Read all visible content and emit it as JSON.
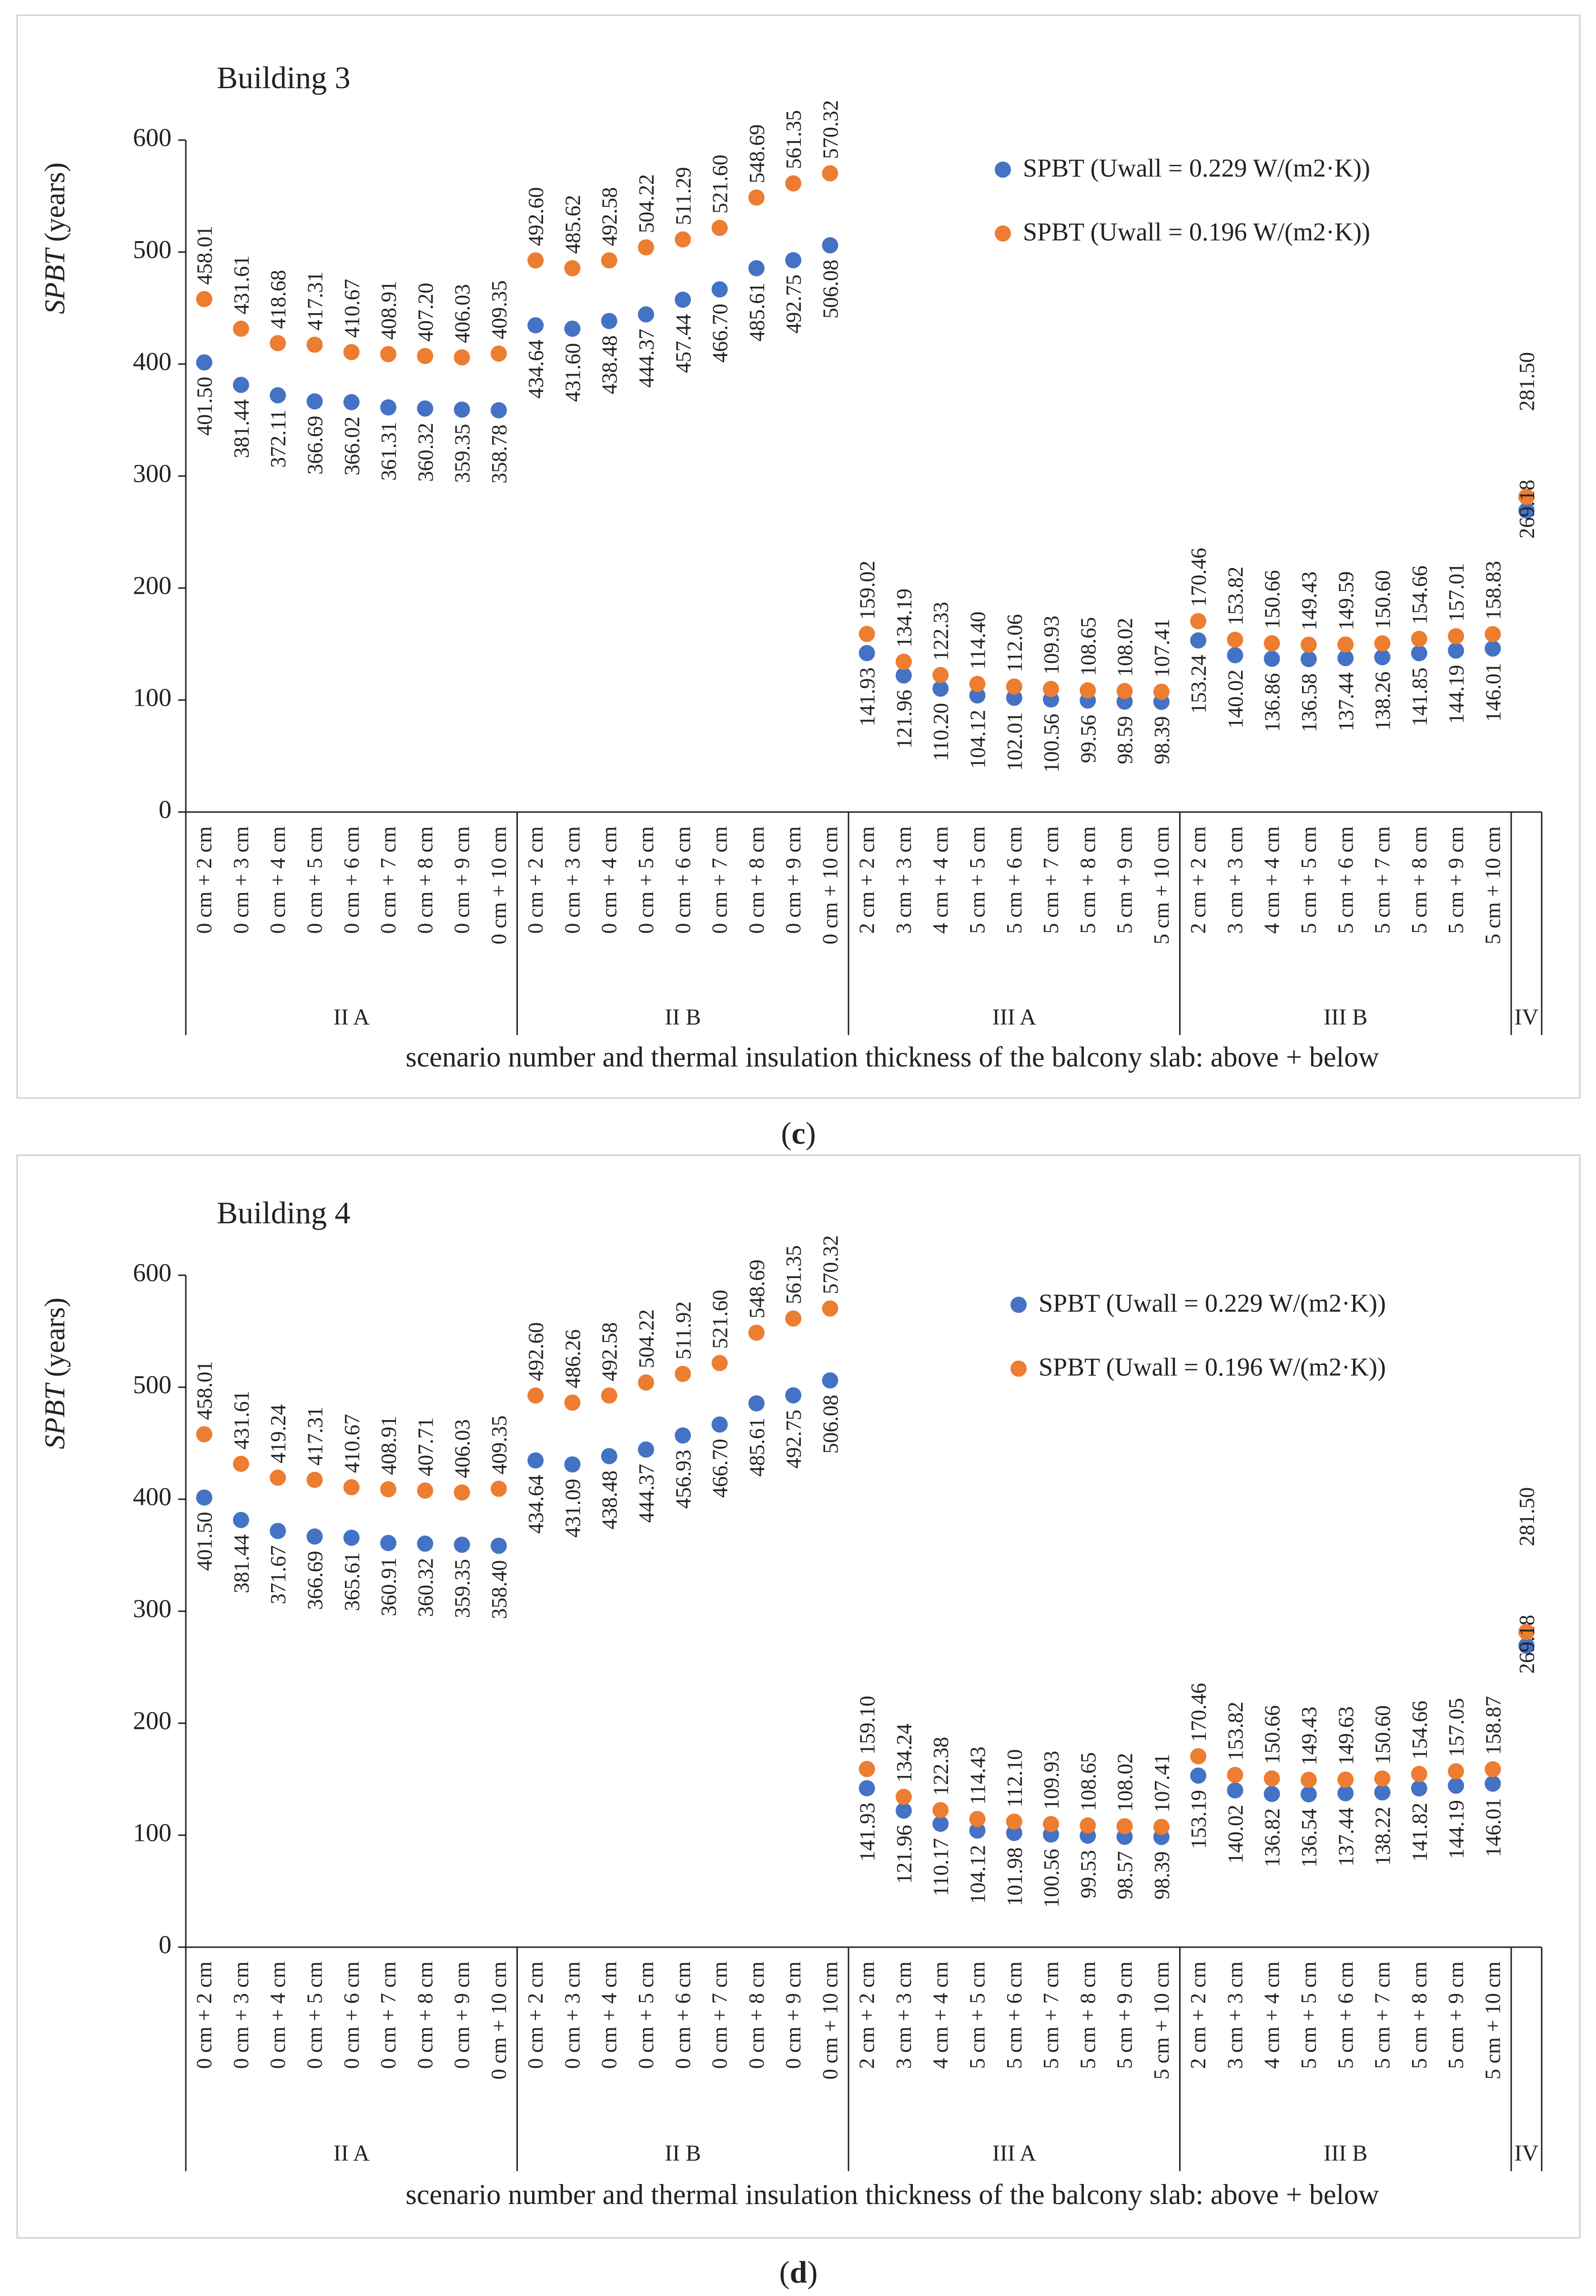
{
  "colors": {
    "series1": "#4472c4",
    "series2": "#ed7d31"
  },
  "chart_data": [
    {
      "type": "scatter",
      "title": "Building 3",
      "caption": "c",
      "ylabel": "SPBT (years)",
      "ylabel_italic": "SPBT",
      "ylabel_rest": " (years)",
      "xlabel": "scenario number and thermal insulation thickness of the balcony slab: above + below",
      "ylim": [
        0,
        600
      ],
      "yticks": [
        "0",
        "100",
        "200",
        "300",
        "400",
        "500",
        "600"
      ],
      "grid": false,
      "legend_position": "top-right",
      "groups": [
        {
          "name": "II A",
          "categories": [
            "0 cm + 2 cm",
            "0 cm + 3 cm",
            "0 cm + 4 cm",
            "0 cm + 5 cm",
            "0 cm + 6 cm",
            "0 cm + 7 cm",
            "0 cm + 8 cm",
            "0 cm + 9 cm",
            "0 cm + 10 cm"
          ]
        },
        {
          "name": "II B",
          "categories": [
            "0 cm + 2 cm",
            "0 cm + 3 cm",
            "0 cm + 4 cm",
            "0 cm + 5 cm",
            "0 cm + 6 cm",
            "0 cm + 7 cm",
            "0 cm + 8 cm",
            "0 cm + 9 cm",
            "0 cm + 10 cm"
          ]
        },
        {
          "name": "III A",
          "categories": [
            "2 cm + 2 cm",
            "3 cm + 3 cm",
            "4 cm + 4 cm",
            "5 cm + 5 cm",
            "5 cm + 6 cm",
            "5 cm + 7 cm",
            "5 cm + 8 cm",
            "5 cm + 9 cm",
            "5 cm + 10 cm"
          ]
        },
        {
          "name": "III B",
          "categories": [
            "2 cm + 2 cm",
            "3 cm + 3 cm",
            "4 cm + 4 cm",
            "5 cm + 5 cm",
            "5 cm + 6 cm",
            "5 cm + 7 cm",
            "5 cm + 8 cm",
            "5 cm + 9 cm",
            "5 cm + 10 cm"
          ]
        },
        {
          "name": "IV",
          "categories": [
            ""
          ]
        }
      ],
      "series": [
        {
          "name": "SPBT (Uwall = 0.229 W/(m2·K))",
          "values": [
            401.5,
            381.44,
            372.11,
            366.69,
            366.02,
            361.31,
            360.32,
            359.35,
            358.78,
            434.64,
            431.6,
            438.48,
            444.37,
            457.44,
            466.7,
            485.61,
            492.75,
            506.08,
            141.93,
            121.96,
            110.2,
            104.12,
            102.01,
            100.56,
            99.56,
            98.59,
            98.39,
            153.24,
            140.02,
            136.86,
            136.58,
            137.44,
            138.26,
            141.85,
            144.19,
            146.01,
            269.18
          ]
        },
        {
          "name": "SPBT (Uwall = 0.196 W/(m2·K))",
          "values": [
            458.01,
            431.61,
            418.68,
            417.31,
            410.67,
            408.91,
            407.2,
            406.03,
            409.35,
            492.6,
            485.62,
            492.58,
            504.22,
            511.29,
            521.6,
            548.69,
            561.35,
            570.32,
            159.02,
            134.19,
            122.33,
            114.4,
            112.06,
            109.93,
            108.65,
            108.02,
            107.41,
            170.46,
            153.82,
            150.66,
            149.43,
            149.59,
            150.6,
            154.66,
            157.01,
            158.83,
            281.5
          ]
        }
      ]
    },
    {
      "type": "scatter",
      "title": "Building 4",
      "caption": "d",
      "ylabel": "SPBT (years)",
      "ylabel_italic": "SPBT",
      "ylabel_rest": " (years)",
      "xlabel": "scenario number and thermal insulation thickness of the balcony slab: above + below",
      "ylim": [
        0,
        600
      ],
      "yticks": [
        "0",
        "100",
        "200",
        "300",
        "400",
        "500",
        "600"
      ],
      "grid": false,
      "legend_position": "top-right",
      "groups": [
        {
          "name": "II A",
          "categories": [
            "0 cm + 2 cm",
            "0 cm + 3 cm",
            "0 cm + 4 cm",
            "0 cm + 5 cm",
            "0 cm + 6 cm",
            "0 cm + 7 cm",
            "0 cm + 8 cm",
            "0 cm + 9 cm",
            "0 cm + 10 cm"
          ]
        },
        {
          "name": "II B",
          "categories": [
            "0 cm + 2 cm",
            "0 cm + 3 cm",
            "0 cm + 4 cm",
            "0 cm + 5 cm",
            "0 cm + 6 cm",
            "0 cm + 7 cm",
            "0 cm + 8 cm",
            "0 cm + 9 cm",
            "0 cm + 10 cm"
          ]
        },
        {
          "name": "III A",
          "categories": [
            "2 cm + 2 cm",
            "3 cm + 3 cm",
            "4 cm + 4 cm",
            "5 cm + 5 cm",
            "5 cm + 6 cm",
            "5 cm + 7 cm",
            "5 cm + 8 cm",
            "5 cm + 9 cm",
            "5 cm + 10 cm"
          ]
        },
        {
          "name": "III B",
          "categories": [
            "2 cm + 2 cm",
            "3 cm + 3 cm",
            "4 cm + 4 cm",
            "5 cm + 5 cm",
            "5 cm + 6 cm",
            "5 cm + 7 cm",
            "5 cm + 8 cm",
            "5 cm + 9 cm",
            "5 cm + 10 cm"
          ]
        },
        {
          "name": "IV",
          "categories": [
            ""
          ]
        }
      ],
      "series": [
        {
          "name": "SPBT (Uwall = 0.229 W/(m2·K))",
          "values": [
            401.5,
            381.44,
            371.67,
            366.69,
            365.61,
            360.91,
            360.32,
            359.35,
            358.4,
            434.64,
            431.09,
            438.48,
            444.37,
            456.93,
            466.7,
            485.61,
            492.75,
            506.08,
            141.93,
            121.96,
            110.17,
            104.12,
            101.98,
            100.56,
            99.53,
            98.57,
            98.39,
            153.19,
            140.02,
            136.82,
            136.54,
            137.44,
            138.22,
            141.82,
            144.19,
            146.01,
            269.18
          ]
        },
        {
          "name": "SPBT (Uwall = 0.196 W/(m2·K))",
          "values": [
            458.01,
            431.61,
            419.24,
            417.31,
            410.67,
            408.91,
            407.71,
            406.03,
            409.35,
            492.6,
            486.26,
            492.58,
            504.22,
            511.92,
            521.6,
            548.69,
            561.35,
            570.32,
            159.1,
            134.24,
            122.38,
            114.43,
            112.1,
            109.93,
            108.65,
            108.02,
            107.41,
            170.46,
            153.82,
            150.66,
            149.43,
            149.63,
            150.6,
            154.66,
            157.05,
            158.87,
            281.5
          ]
        }
      ]
    }
  ]
}
